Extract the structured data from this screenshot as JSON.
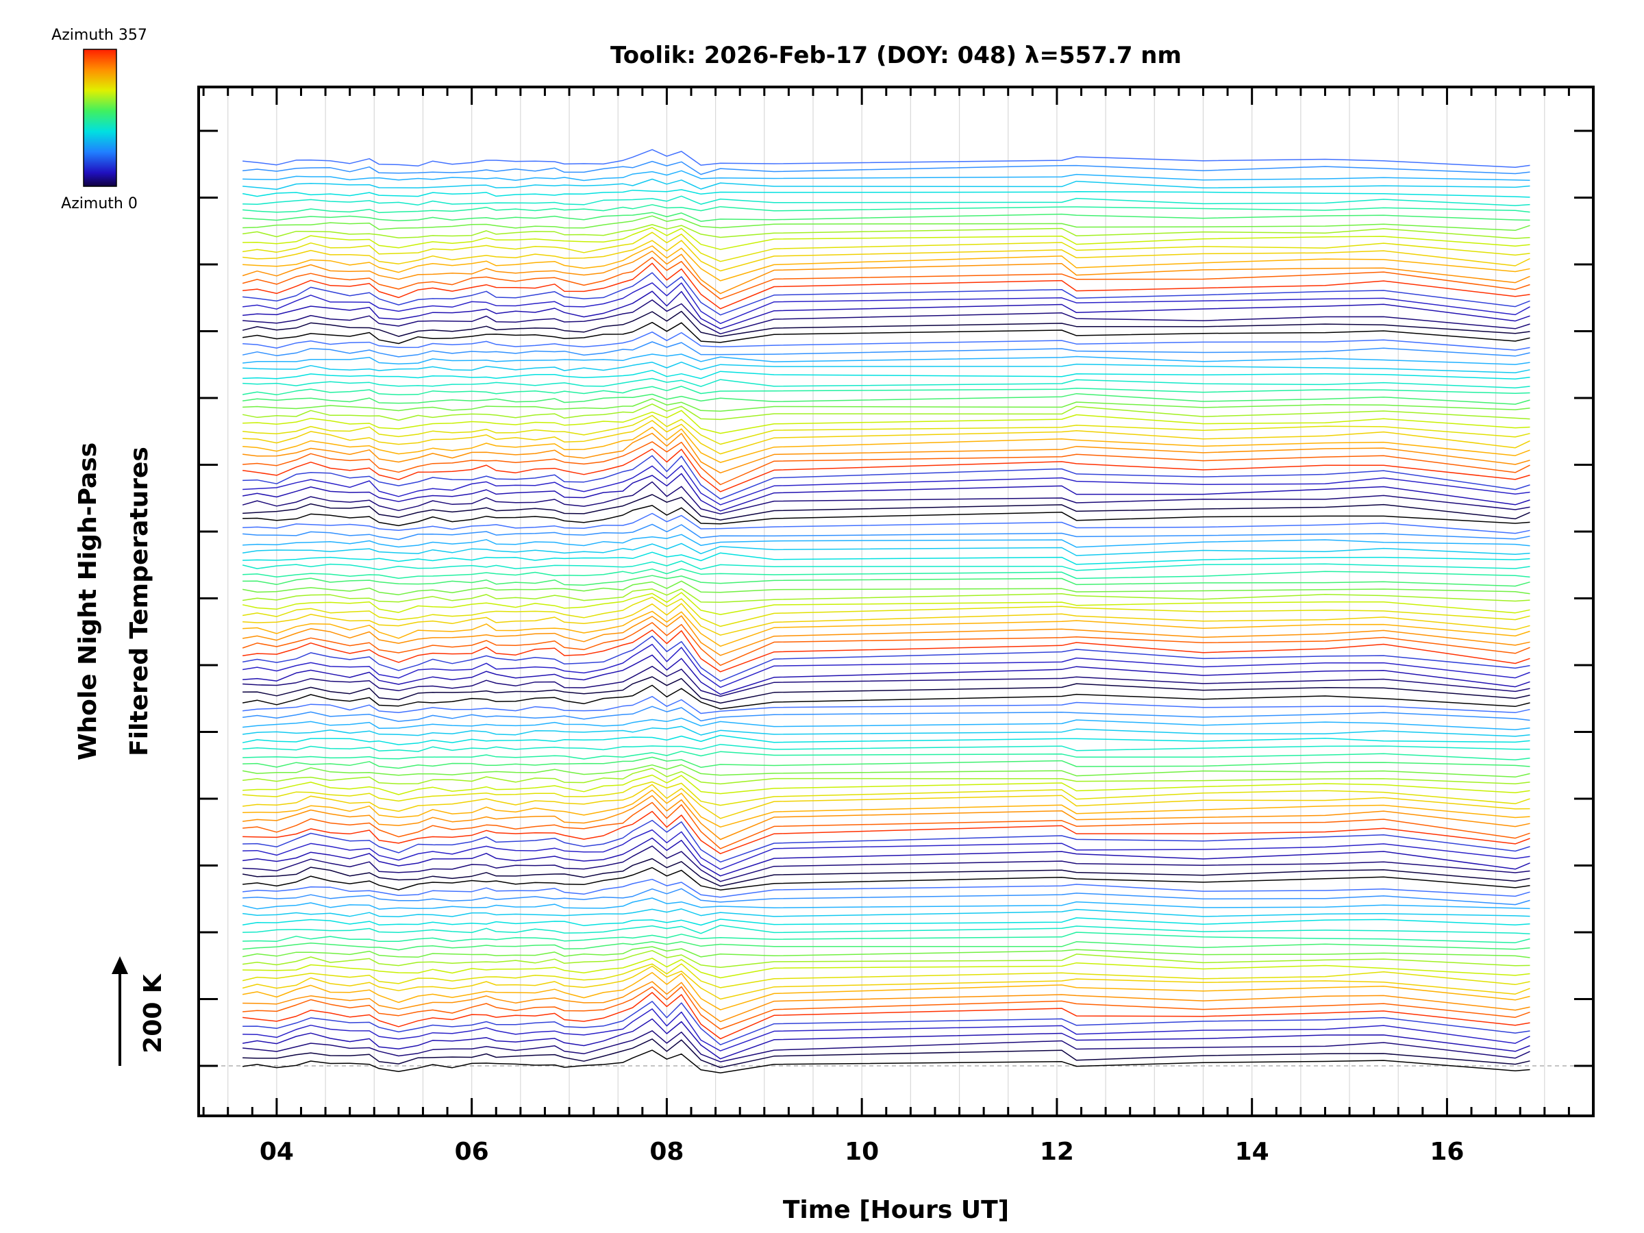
{
  "chart_data": {
    "type": "line",
    "title": "Toolik: 2026-Feb-17 (DOY: 048) λ=557.7 nm",
    "xlabel": "Time [Hours UT]",
    "ylabel_line1": "Whole Night High-Pass",
    "ylabel_line2": "Filtered Temperatures",
    "scale_label": "200 K",
    "xlim": [
      3.2,
      17.5
    ],
    "x_ticks": [
      {
        "value": 4,
        "label": "04"
      },
      {
        "value": 6,
        "label": "06"
      },
      {
        "value": 8,
        "label": "08"
      },
      {
        "value": 10,
        "label": "10"
      },
      {
        "value": 12,
        "label": "12"
      },
      {
        "value": 14,
        "label": "14"
      },
      {
        "value": 16,
        "label": "16"
      }
    ],
    "colorbar": {
      "top_label": "Azimuth 357",
      "bottom_label": "Azimuth 0",
      "colors": [
        "#ff0000",
        "#ff8000",
        "#ffff00",
        "#80ff00",
        "#00ff80",
        "#00ffff",
        "#0080ff",
        "#0000ff",
        "#000080",
        "#000000"
      ]
    },
    "num_traces": 115,
    "times": [
      3.65,
      3.8,
      4.0,
      4.2,
      4.35,
      4.55,
      4.75,
      4.95,
      5.05,
      5.25,
      5.45,
      5.6,
      5.8,
      6.0,
      6.15,
      6.25,
      6.45,
      6.65,
      6.85,
      6.95,
      7.15,
      7.35,
      7.55,
      7.65,
      7.85,
      8.0,
      8.15,
      8.35,
      8.55,
      9.1,
      12.05,
      12.2,
      13.5,
      14.75,
      15.35,
      16.7,
      16.85
    ],
    "baseline_feature": [
      0.0,
      0.1,
      -0.2,
      0.4,
      0.9,
      0.5,
      0.2,
      0.5,
      -0.3,
      -0.7,
      -0.2,
      0.1,
      -0.1,
      0.2,
      0.5,
      0.2,
      0.1,
      0.3,
      0.4,
      0.0,
      -0.2,
      0.2,
      0.7,
      1.2,
      2.4,
      1.0,
      2.2,
      -0.4,
      -1.2,
      0.2,
      0.9,
      0.6,
      0.3,
      0.6,
      0.8,
      -0.8,
      -0.3
    ],
    "notes": "115 stacked high-pass filtered temperature traces, each offset vertically; colors cycle through azimuth colormap from dark blue/black through orange, yellow, green, cyan to light blue"
  }
}
